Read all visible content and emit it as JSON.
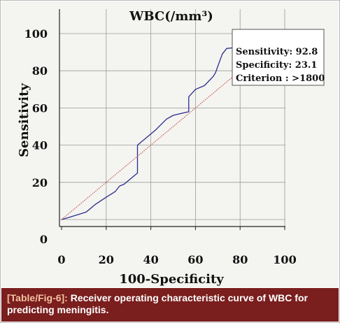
{
  "chart_data": {
    "type": "line",
    "title": "WBC(/mm³)",
    "xlabel": "100-Specificity",
    "ylabel": "Sensitivity",
    "xlim": [
      0,
      100
    ],
    "ylim": [
      0,
      100
    ],
    "x_ticks": [
      0,
      20,
      40,
      60,
      80,
      100
    ],
    "y_ticks": [
      0,
      20,
      40,
      60,
      80,
      100
    ],
    "grid": true,
    "series": [
      {
        "color": "#2b2d8c",
        "points": [
          [
            0,
            0
          ],
          [
            3,
            1
          ],
          [
            11,
            4
          ],
          [
            15,
            8
          ],
          [
            20,
            12
          ],
          [
            24,
            15
          ],
          [
            26,
            18
          ],
          [
            28,
            19
          ],
          [
            34,
            25
          ],
          [
            34,
            40
          ],
          [
            38,
            44
          ],
          [
            42,
            48
          ],
          [
            47,
            54
          ],
          [
            50,
            56
          ],
          [
            57,
            58
          ],
          [
            57,
            66
          ],
          [
            60,
            70
          ],
          [
            64,
            72
          ],
          [
            68,
            77
          ],
          [
            69,
            79
          ],
          [
            72,
            89
          ],
          [
            74,
            92
          ],
          [
            82,
            93
          ],
          [
            93,
            94
          ],
          [
            96,
            97
          ],
          [
            100,
            100
          ]
        ]
      },
      {
        "color": "#c43a2a",
        "style": "dotted",
        "points": [
          [
            0,
            0
          ],
          [
            100,
            100
          ]
        ]
      }
    ],
    "annotation": {
      "lines": [
        "Sensitivity: 92.8",
        "Specificity: 23.1",
        "Criterion : >1800"
      ]
    }
  },
  "caption": {
    "ref": "[Table/Fig-6]:",
    "text": " Receiver operating characteristic curve of WBC for predicting meningitis."
  }
}
